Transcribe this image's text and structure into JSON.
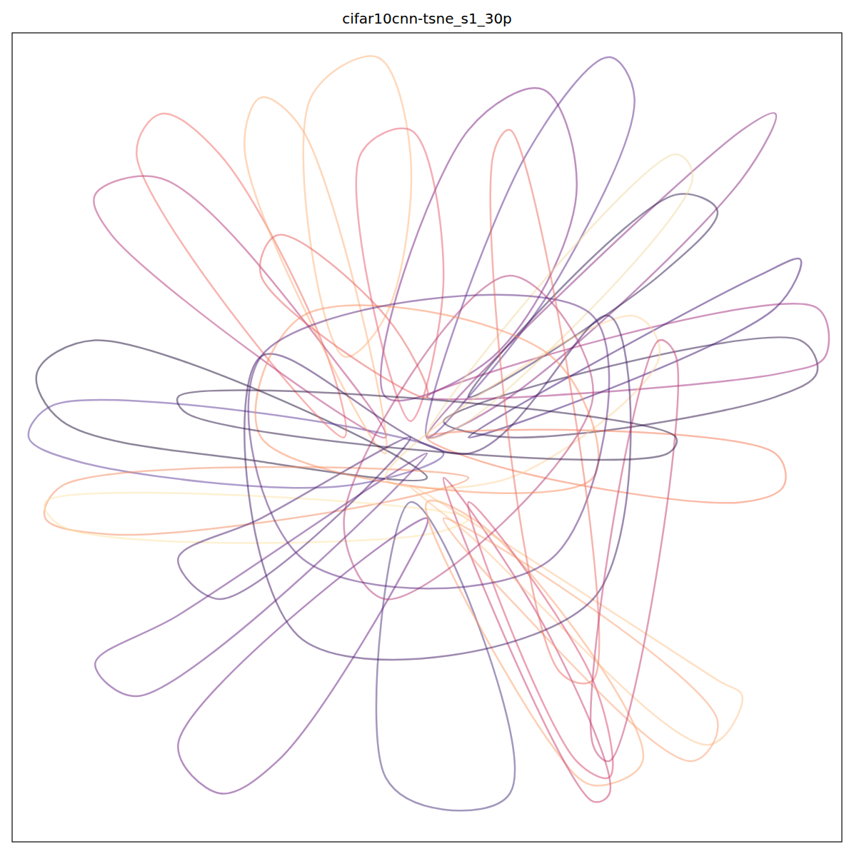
{
  "chart_data": {
    "type": "line",
    "title": "cifar10cnn-tsne_s1_30p",
    "xlim": [
      0,
      100
    ],
    "ylim": [
      0,
      100
    ],
    "tick_labels": false,
    "grid": false,
    "series": [
      {
        "color": "#5c2a8c",
        "x": [
          50,
          62,
          72,
          75,
          66,
          55
        ],
        "values": [
          50,
          85,
          97,
          92,
          70,
          55
        ]
      },
      {
        "color": "#7a1f7f",
        "x": [
          45,
          55,
          64,
          68,
          58
        ],
        "values": [
          55,
          88,
          93,
          80,
          60
        ]
      },
      {
        "color": "#fdb47a",
        "x": [
          40,
          36,
          44,
          48,
          45
        ],
        "values": [
          60,
          92,
          97,
          85,
          65
        ]
      },
      {
        "color": "#e8596b",
        "x": [
          48,
          42,
          48,
          52
        ],
        "values": [
          52,
          85,
          88,
          70
        ]
      },
      {
        "color": "#1b0c35",
        "x": [
          50,
          10,
          3,
          6,
          30
        ],
        "values": [
          45,
          62,
          58,
          52,
          47
        ]
      },
      {
        "color": "#5e3c99",
        "x": [
          52,
          5,
          2,
          8,
          40
        ],
        "values": [
          48,
          54,
          50,
          47,
          44
        ]
      },
      {
        "color": "#f48a5e",
        "x": [
          55,
          6,
          4,
          12,
          45
        ],
        "values": [
          45,
          44,
          40,
          38,
          42
        ]
      },
      {
        "color": "#fde3a6",
        "x": [
          55,
          4,
          6,
          50
        ],
        "values": [
          40,
          42,
          39,
          38
        ]
      },
      {
        "color": "#6a1c81",
        "x": [
          50,
          20,
          25,
          32,
          48
        ],
        "values": [
          40,
          12,
          6,
          10,
          35
        ]
      },
      {
        "color": "#47307a",
        "x": [
          48,
          45,
          52,
          60,
          55
        ],
        "values": [
          42,
          8,
          4,
          6,
          30
        ]
      },
      {
        "color": "#fca06a",
        "x": [
          50,
          65,
          70,
          76,
          58
        ],
        "values": [
          42,
          12,
          7,
          10,
          38
        ]
      },
      {
        "color": "#c7396b",
        "x": [
          52,
          70,
          72,
          65
        ],
        "values": [
          45,
          5,
          6,
          25
        ]
      },
      {
        "color": "#fec38e",
        "x": [
          48,
          85,
          88,
          84,
          55
        ],
        "values": [
          44,
          20,
          18,
          12,
          38
        ]
      },
      {
        "color": "#2c1247",
        "x": [
          52,
          95,
          97,
          92,
          60
        ],
        "values": [
          52,
          62,
          58,
          55,
          50
        ]
      },
      {
        "color": "#a22c7e",
        "x": [
          50,
          97,
          98,
          93
        ],
        "values": [
          55,
          66,
          60,
          58
        ]
      },
      {
        "color": "#3b0f6f",
        "x": [
          55,
          90,
          95,
          92
        ],
        "values": [
          50,
          70,
          72,
          66
        ]
      },
      {
        "color": "#f6754f",
        "x": [
          50,
          92,
          93,
          88,
          60
        ],
        "values": [
          50,
          48,
          44,
          42,
          46
        ]
      },
      {
        "color": "#ef6a63",
        "x": [
          40,
          15,
          18,
          25,
          38
        ],
        "values": [
          50,
          85,
          90,
          85,
          60
        ]
      },
      {
        "color": "#b5367a",
        "x": [
          45,
          12,
          10,
          18,
          40
        ],
        "values": [
          50,
          75,
          80,
          82,
          58
        ]
      },
      {
        "color": "#8a2a7f",
        "x": [
          50,
          88,
          92,
          88,
          60
        ],
        "values": [
          50,
          88,
          90,
          82,
          55
        ]
      },
      {
        "color": "#feb078",
        "x": [
          45,
          35,
          30,
          28,
          38
        ],
        "values": [
          48,
          88,
          92,
          86,
          60
        ]
      },
      {
        "color": "#2d1a4f",
        "x": [
          55,
          80,
          85,
          78
        ],
        "values": [
          55,
          80,
          78,
          70
        ]
      },
      {
        "color": "#f2d9a4",
        "x": [
          50,
          80,
          82,
          55
        ],
        "values": [
          50,
          85,
          82,
          52
        ]
      },
      {
        "color": "#d8456c",
        "x": [
          55,
          70,
          72,
          68
        ],
        "values": [
          42,
          20,
          8,
          10
        ]
      },
      {
        "color": "#662483",
        "x": [
          50,
          15,
          10,
          20,
          45
        ],
        "values": [
          48,
          18,
          22,
          28,
          45
        ]
      },
      {
        "color": "#faa071",
        "x": [
          52,
          85,
          82,
          60
        ],
        "values": [
          40,
          15,
          10,
          30
        ]
      },
      {
        "color": "#4a1a6e",
        "x": [
          48,
          25,
          20,
          30
        ],
        "values": [
          50,
          30,
          35,
          40
        ]
      },
      {
        "color": "#e65e5c",
        "x": [
          50,
          30,
          32,
          45
        ],
        "values": [
          55,
          70,
          75,
          65
        ]
      },
      {
        "color": "#fdd49c",
        "x": [
          45,
          75,
          78,
          60
        ],
        "values": [
          45,
          65,
          60,
          45
        ]
      },
      {
        "color": "#3c1461",
        "x": [
          55,
          30,
          35,
          70,
          72
        ],
        "values": [
          48,
          60,
          25,
          30,
          65
        ]
      },
      {
        "color": "#b33b78",
        "x": [
          40,
          60,
          70,
          45
        ],
        "values": [
          40,
          70,
          55,
          30
        ]
      },
      {
        "color": "#f98c5b",
        "x": [
          30,
          70,
          65,
          35
        ],
        "values": [
          50,
          45,
          60,
          65
        ]
      },
      {
        "color": "#56207b",
        "x": [
          35,
          65,
          70,
          30
        ],
        "values": [
          35,
          35,
          65,
          60
        ]
      },
      {
        "color": "#ec6b60",
        "x": [
          60,
          70,
          66,
          58
        ],
        "values": [
          88,
          20,
          21,
          85
        ]
      },
      {
        "color": "#c13a6f",
        "x": [
          72,
          80,
          78,
          70
        ],
        "values": [
          10,
          60,
          62,
          12
        ]
      },
      {
        "color": "#281040",
        "x": [
          20,
          80,
          79,
          21
        ],
        "values": [
          55,
          50,
          48,
          53
        ]
      }
    ]
  }
}
